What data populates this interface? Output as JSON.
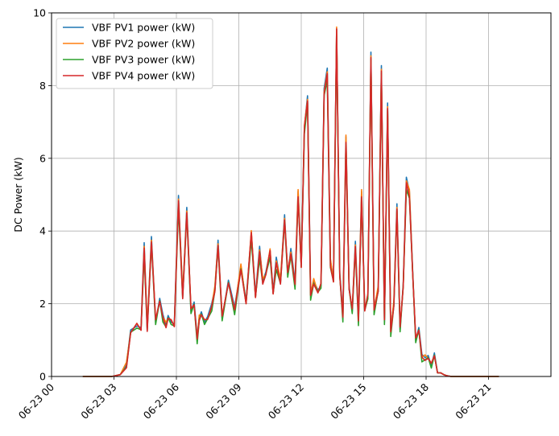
{
  "chart_data": {
    "type": "line",
    "title": "",
    "xlabel": "",
    "ylabel": "DC Power (kW)",
    "xlim": [
      "06-23 00:00",
      "24:00"
    ],
    "ylim": [
      0,
      10
    ],
    "grid": true,
    "legend_position": "top-left",
    "x_ticks": [
      "06-23 00",
      "06-23 03",
      "06-23 06",
      "06-23 09",
      "06-23 12",
      "06-23 15",
      "06-23 18",
      "06-23 21"
    ],
    "x_tick_hours": [
      0,
      3,
      6,
      9,
      12,
      15,
      18,
      21
    ],
    "y_ticks": [
      0,
      2,
      4,
      6,
      8,
      10
    ],
    "x_unit_note": "hours since 06-23 00:00",
    "base_series": {
      "x": [
        1.5,
        2.9,
        3.3,
        3.6,
        3.8,
        4.1,
        4.3,
        4.45,
        4.6,
        4.8,
        5.0,
        5.2,
        5.35,
        5.5,
        5.6,
        5.75,
        5.9,
        6.1,
        6.3,
        6.5,
        6.7,
        6.85,
        7.0,
        7.1,
        7.2,
        7.35,
        7.5,
        7.7,
        7.85,
        8.0,
        8.2,
        8.5,
        8.8,
        9.1,
        9.35,
        9.6,
        9.8,
        10.0,
        10.15,
        10.3,
        10.5,
        10.65,
        10.8,
        11.0,
        11.2,
        11.35,
        11.5,
        11.7,
        11.85,
        12.0,
        12.15,
        12.3,
        12.45,
        12.6,
        12.8,
        12.95,
        13.1,
        13.25,
        13.4,
        13.55,
        13.7,
        13.85,
        14.0,
        14.15,
        14.3,
        14.45,
        14.6,
        14.75,
        14.9,
        15.05,
        15.2,
        15.35,
        15.5,
        15.7,
        15.85,
        16.0,
        16.15,
        16.3,
        16.45,
        16.6,
        16.75,
        16.9,
        17.05,
        17.2,
        17.35,
        17.5,
        17.65,
        17.8,
        17.95,
        18.1,
        18.25,
        18.4,
        18.55,
        18.7,
        18.85,
        19.0,
        19.2,
        19.4,
        19.7,
        20.0,
        20.3,
        20.6,
        20.9,
        21.2,
        21.5
      ],
      "y": [
        0,
        0,
        0.05,
        0.3,
        1.2,
        1.4,
        1.3,
        3.5,
        1.3,
        3.7,
        1.5,
        2.1,
        1.6,
        1.4,
        1.6,
        1.5,
        1.4,
        4.8,
        2.2,
        4.5,
        1.8,
        2.0,
        1.0,
        1.6,
        1.7,
        1.5,
        1.6,
        1.9,
        2.4,
        3.6,
        1.6,
        2.6,
        1.8,
        3.0,
        2.0,
        3.9,
        2.2,
        3.4,
        2.6,
        2.8,
        3.4,
        2.3,
        3.1,
        2.6,
        4.3,
        2.8,
        3.4,
        2.5,
        5.0,
        3.0,
        6.8,
        7.6,
        2.2,
        2.6,
        2.3,
        2.5,
        7.8,
        8.3,
        3.1,
        2.6,
        9.5,
        2.8,
        1.6,
        6.5,
        2.4,
        1.8,
        3.6,
        1.5,
        5.0,
        1.8,
        2.2,
        8.8,
        1.8,
        2.4,
        8.4,
        1.5,
        7.4,
        1.2,
        2.0,
        4.6,
        1.3,
        2.5,
        5.3,
        5.0,
        2.9,
        1.0,
        1.3,
        0.5,
        0.5,
        0.5,
        0.3,
        0.6,
        0.1,
        0.1,
        0.05,
        0.02,
        0,
        0,
        0,
        0,
        0,
        0,
        0,
        0,
        0
      ]
    },
    "series": [
      {
        "name": "VBF PV1 power (kW)",
        "color": "#1f77b4",
        "offset": 0.12
      },
      {
        "name": "VBF PV2 power (kW)",
        "color": "#ff7f0e",
        "offset": 0.08
      },
      {
        "name": "VBF PV3 power (kW)",
        "color": "#2ca02c",
        "offset": -0.1
      },
      {
        "name": "VBF PV4 power (kW)",
        "color": "#d62728",
        "offset": 0.0
      }
    ]
  }
}
